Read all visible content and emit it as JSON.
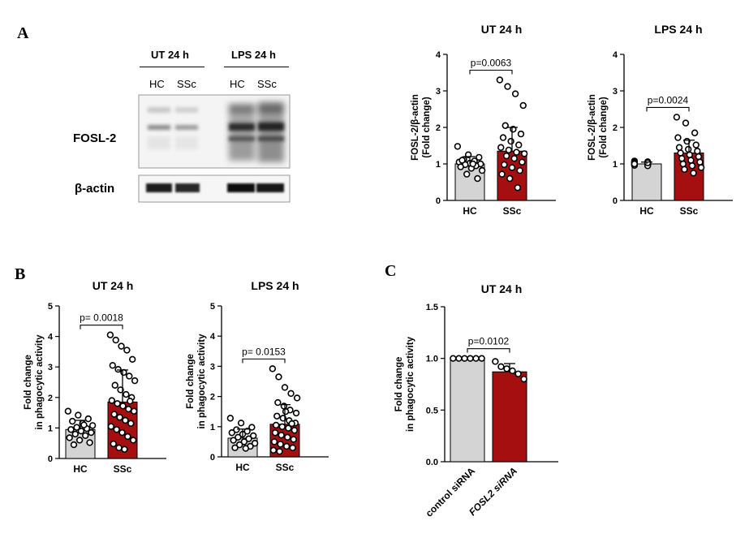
{
  "panels": {
    "a": "A",
    "b": "B",
    "c": "C"
  },
  "blot": {
    "conditions": [
      "UT 24 h",
      "LPS 24 h"
    ],
    "lanes": [
      "HC",
      "SSc",
      "HC",
      "SSc"
    ],
    "proteins": [
      "FOSL-2",
      "β-actin"
    ]
  },
  "colors": {
    "hc_bar": "#d4d4d4",
    "ssc_bar": "#a50f0f",
    "points": "#000000"
  },
  "chart_data": [
    {
      "id": "a-ut",
      "type": "bar",
      "title": "UT 24 h",
      "ylabel": "FOSL-2/β-actin",
      "ylabel2": "(Fold change)",
      "ylim": [
        0,
        4
      ],
      "yticks": [
        0,
        1,
        2,
        3,
        4
      ],
      "categories": [
        "HC",
        "SSc"
      ],
      "values": [
        1.0,
        1.35
      ],
      "errors": [
        0.2,
        0.65
      ],
      "pvalue": "p=0.0063",
      "points": [
        [
          1.48,
          1.25,
          1.18,
          1.12,
          1.08,
          1.05,
          1.02,
          1.0,
          0.98,
          0.95,
          0.92,
          0.88,
          0.82,
          0.72,
          0.6,
          1.1,
          1.0
        ],
        [
          3.3,
          3.12,
          2.92,
          2.6,
          2.05,
          1.95,
          1.82,
          1.72,
          1.62,
          1.52,
          1.45,
          1.38,
          1.32,
          1.28,
          1.22,
          1.15,
          1.05,
          0.98,
          0.9,
          0.82,
          0.72,
          0.6,
          0.35
        ]
      ]
    },
    {
      "id": "a-lps",
      "type": "bar",
      "title": "LPS 24 h",
      "ylabel": "FOSL-2/β-actin",
      "ylabel2": "(Fold change)",
      "ylim": [
        0,
        4
      ],
      "yticks": [
        0,
        1,
        2,
        3,
        4
      ],
      "categories": [
        "HC",
        "SSc"
      ],
      "values": [
        1.0,
        1.3
      ],
      "errors": [
        0.05,
        0.35
      ],
      "pvalue": "p=0.0024",
      "points": [
        [
          1.08,
          1.06,
          1.05,
          1.04,
          1.02,
          1.01,
          1.0,
          0.99,
          0.98,
          0.97,
          0.96,
          0.95,
          1.0,
          1.03
        ],
        [
          2.28,
          2.12,
          1.85,
          1.72,
          1.62,
          1.52,
          1.45,
          1.4,
          1.35,
          1.3,
          1.25,
          1.2,
          1.15,
          1.1,
          1.05,
          1.0,
          0.95,
          0.9,
          0.85,
          0.75
        ]
      ]
    },
    {
      "id": "b-ut",
      "type": "bar",
      "title": "UT 24 h",
      "ylabel": "Fold change",
      "ylabel2": "in phagocytic activity",
      "ylim": [
        0,
        5
      ],
      "yticks": [
        0,
        1,
        2,
        3,
        4,
        5
      ],
      "categories": [
        "HC",
        "SSc"
      ],
      "values": [
        0.95,
        1.85
      ],
      "errors": [
        0.3,
        1.05
      ],
      "pvalue": "p= 0.0018",
      "points": [
        [
          1.55,
          1.42,
          1.3,
          1.22,
          1.15,
          1.08,
          1.02,
          0.98,
          0.95,
          0.9,
          0.85,
          0.8,
          0.75,
          0.68,
          0.6,
          0.52,
          0.45,
          1.1
        ],
        [
          4.05,
          3.88,
          3.68,
          3.55,
          3.25,
          3.05,
          2.92,
          2.82,
          2.7,
          2.55,
          2.4,
          2.25,
          2.1,
          2.0,
          1.9,
          1.8,
          1.72,
          1.62,
          1.55,
          1.45,
          1.35,
          1.25,
          1.15,
          1.05,
          0.95,
          0.85,
          0.72,
          0.6,
          0.48,
          0.35,
          0.3,
          1.88
        ]
      ]
    },
    {
      "id": "b-lps",
      "type": "bar",
      "title": "LPS 24 h",
      "ylabel": "Fold change",
      "ylabel2": "in phagocytic activity",
      "ylim": [
        0,
        5
      ],
      "yticks": [
        0,
        1,
        2,
        3,
        4,
        5
      ],
      "categories": [
        "HC",
        "SSc"
      ],
      "values": [
        0.62,
        1.08
      ],
      "errors": [
        0.3,
        0.65
      ],
      "pvalue": "p= 0.0153",
      "points": [
        [
          1.28,
          1.12,
          0.98,
          0.9,
          0.85,
          0.8,
          0.75,
          0.7,
          0.65,
          0.6,
          0.55,
          0.5,
          0.45,
          0.4,
          0.35,
          0.3,
          0.28
        ],
        [
          2.92,
          2.65,
          2.3,
          2.1,
          1.95,
          1.8,
          1.68,
          1.55,
          1.45,
          1.35,
          1.28,
          1.2,
          1.12,
          1.05,
          1.0,
          0.95,
          0.88,
          0.8,
          0.72,
          0.65,
          0.58,
          0.5,
          0.42,
          0.35,
          0.3,
          0.22,
          0.18,
          1.5,
          1.1
        ]
      ]
    },
    {
      "id": "c-ut",
      "type": "bar",
      "title": "UT 24 h",
      "ylabel": "Fold change",
      "ylabel2": "in phagocytic activity",
      "ylim": [
        0,
        1.5
      ],
      "yticks": [
        0.0,
        0.5,
        1.0,
        1.5
      ],
      "ytick_labels": [
        "0.0",
        "0.5",
        "1.0",
        "1.5"
      ],
      "categories": [
        "control siRNA",
        "FOSL2 siRNA"
      ],
      "values": [
        1.0,
        0.87
      ],
      "errors": [
        0.0,
        0.08
      ],
      "pvalue": "p=0.0102",
      "points": [
        [
          1.0,
          1.0,
          1.0,
          1.0,
          1.0,
          1.0
        ],
        [
          0.97,
          0.92,
          0.9,
          0.88,
          0.85,
          0.8
        ]
      ]
    }
  ]
}
